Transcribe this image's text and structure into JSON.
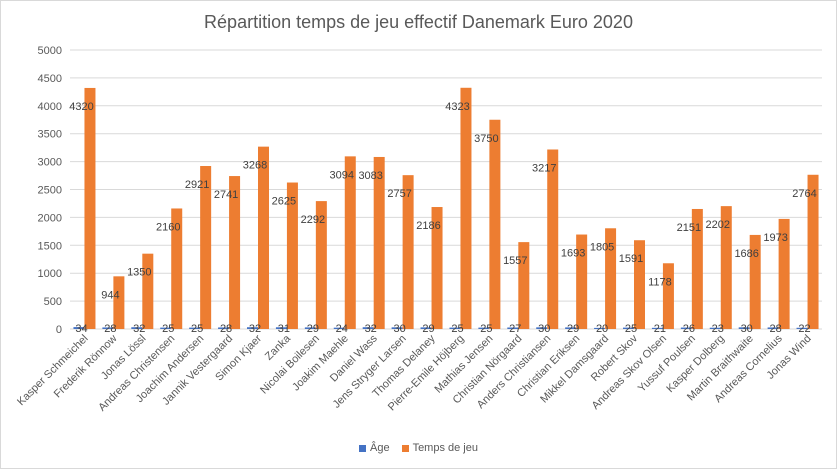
{
  "chart_data": {
    "type": "bar",
    "title": "Répartition temps de jeu effectif Danemark Euro 2020",
    "xlabel": "",
    "ylabel": "",
    "ylim": [
      0,
      5000
    ],
    "yticks": [
      0,
      500,
      1000,
      1500,
      2000,
      2500,
      3000,
      3500,
      4000,
      4500,
      5000
    ],
    "grid": true,
    "legend_position": "bottom",
    "categories": [
      "Kasper Schmeichel",
      "Frederik Rönnow",
      "Jonas Lössl",
      "Andreas Christensen",
      "Joachim Andersen",
      "Jannik Vestergaard",
      "Simon Kjaer",
      "Zanka",
      "Nicolai Boilesen",
      "Joakim Maehle",
      "Daniel Wass",
      "Jens Stryger Larsen",
      "Thomas Delaney",
      "Pierre-Emile Höjberg",
      "Mathias Jensen",
      "Christian Nörgaard",
      "Anders Christiansen",
      "Christian Eriksen",
      "Mikkel Damsgaard",
      "Robert Skov",
      "Andreas Skov Olsen",
      "Yussuf Poulsen",
      "Kasper Dolberg",
      "Martin Braithwaite",
      "Andreas Cornelius",
      "Jonas Wind"
    ],
    "series": [
      {
        "name": "Âge",
        "color": "#4472c4",
        "values": [
          34,
          28,
          32,
          25,
          25,
          28,
          32,
          31,
          29,
          24,
          32,
          30,
          29,
          25,
          25,
          27,
          30,
          29,
          20,
          25,
          21,
          26,
          23,
          30,
          28,
          22
        ]
      },
      {
        "name": "Temps de jeu",
        "color": "#ed7d31",
        "values": [
          4320,
          944,
          1350,
          2160,
          2921,
          2741,
          3268,
          2625,
          2292,
          3094,
          3083,
          2757,
          2186,
          4323,
          3750,
          1557,
          3217,
          1693,
          1805,
          1591,
          1178,
          2151,
          2202,
          1686,
          1973,
          2764
        ]
      }
    ]
  }
}
